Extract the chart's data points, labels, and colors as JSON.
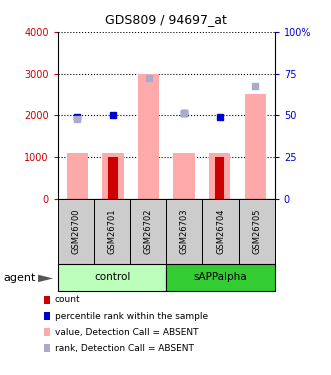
{
  "title": "GDS809 / 94697_at",
  "samples": [
    "GSM26700",
    "GSM26701",
    "GSM26702",
    "GSM26703",
    "GSM26704",
    "GSM26705"
  ],
  "bar_values_red": [
    0,
    1000,
    0,
    0,
    1000,
    0
  ],
  "bar_values_pink": [
    1100,
    1100,
    3000,
    1100,
    1100,
    2500
  ],
  "dot_blue_dark_y": [
    1950,
    2000,
    -1,
    2050,
    1950,
    -1
  ],
  "dot_blue_light_y": [
    1900,
    -1,
    2900,
    2050,
    -1,
    2700
  ],
  "ylim_left": [
    0,
    4000
  ],
  "ylim_right": [
    0,
    100
  ],
  "yticks_left": [
    0,
    1000,
    2000,
    3000,
    4000
  ],
  "yticks_right": [
    0,
    25,
    50,
    75,
    100
  ],
  "ytick_labels_left": [
    "0",
    "1000",
    "2000",
    "3000",
    "4000"
  ],
  "ytick_labels_right": [
    "0",
    "25",
    "50",
    "75",
    "100%"
  ],
  "color_red": "#cc0000",
  "color_pink": "#ffaaaa",
  "color_blue_dark": "#0000cc",
  "color_blue_light": "#aaaacc",
  "color_control_bg": "#bbffbb",
  "color_sapp_bg": "#33cc33",
  "color_gray_bg": "#cccccc",
  "legend_items": [
    "count",
    "percentile rank within the sample",
    "value, Detection Call = ABSENT",
    "rank, Detection Call = ABSENT"
  ],
  "legend_colors": [
    "#cc0000",
    "#0000cc",
    "#ffaaaa",
    "#aaaacc"
  ],
  "group_names": [
    "control",
    "sAPPalpha"
  ],
  "group_counts": [
    3,
    3
  ]
}
